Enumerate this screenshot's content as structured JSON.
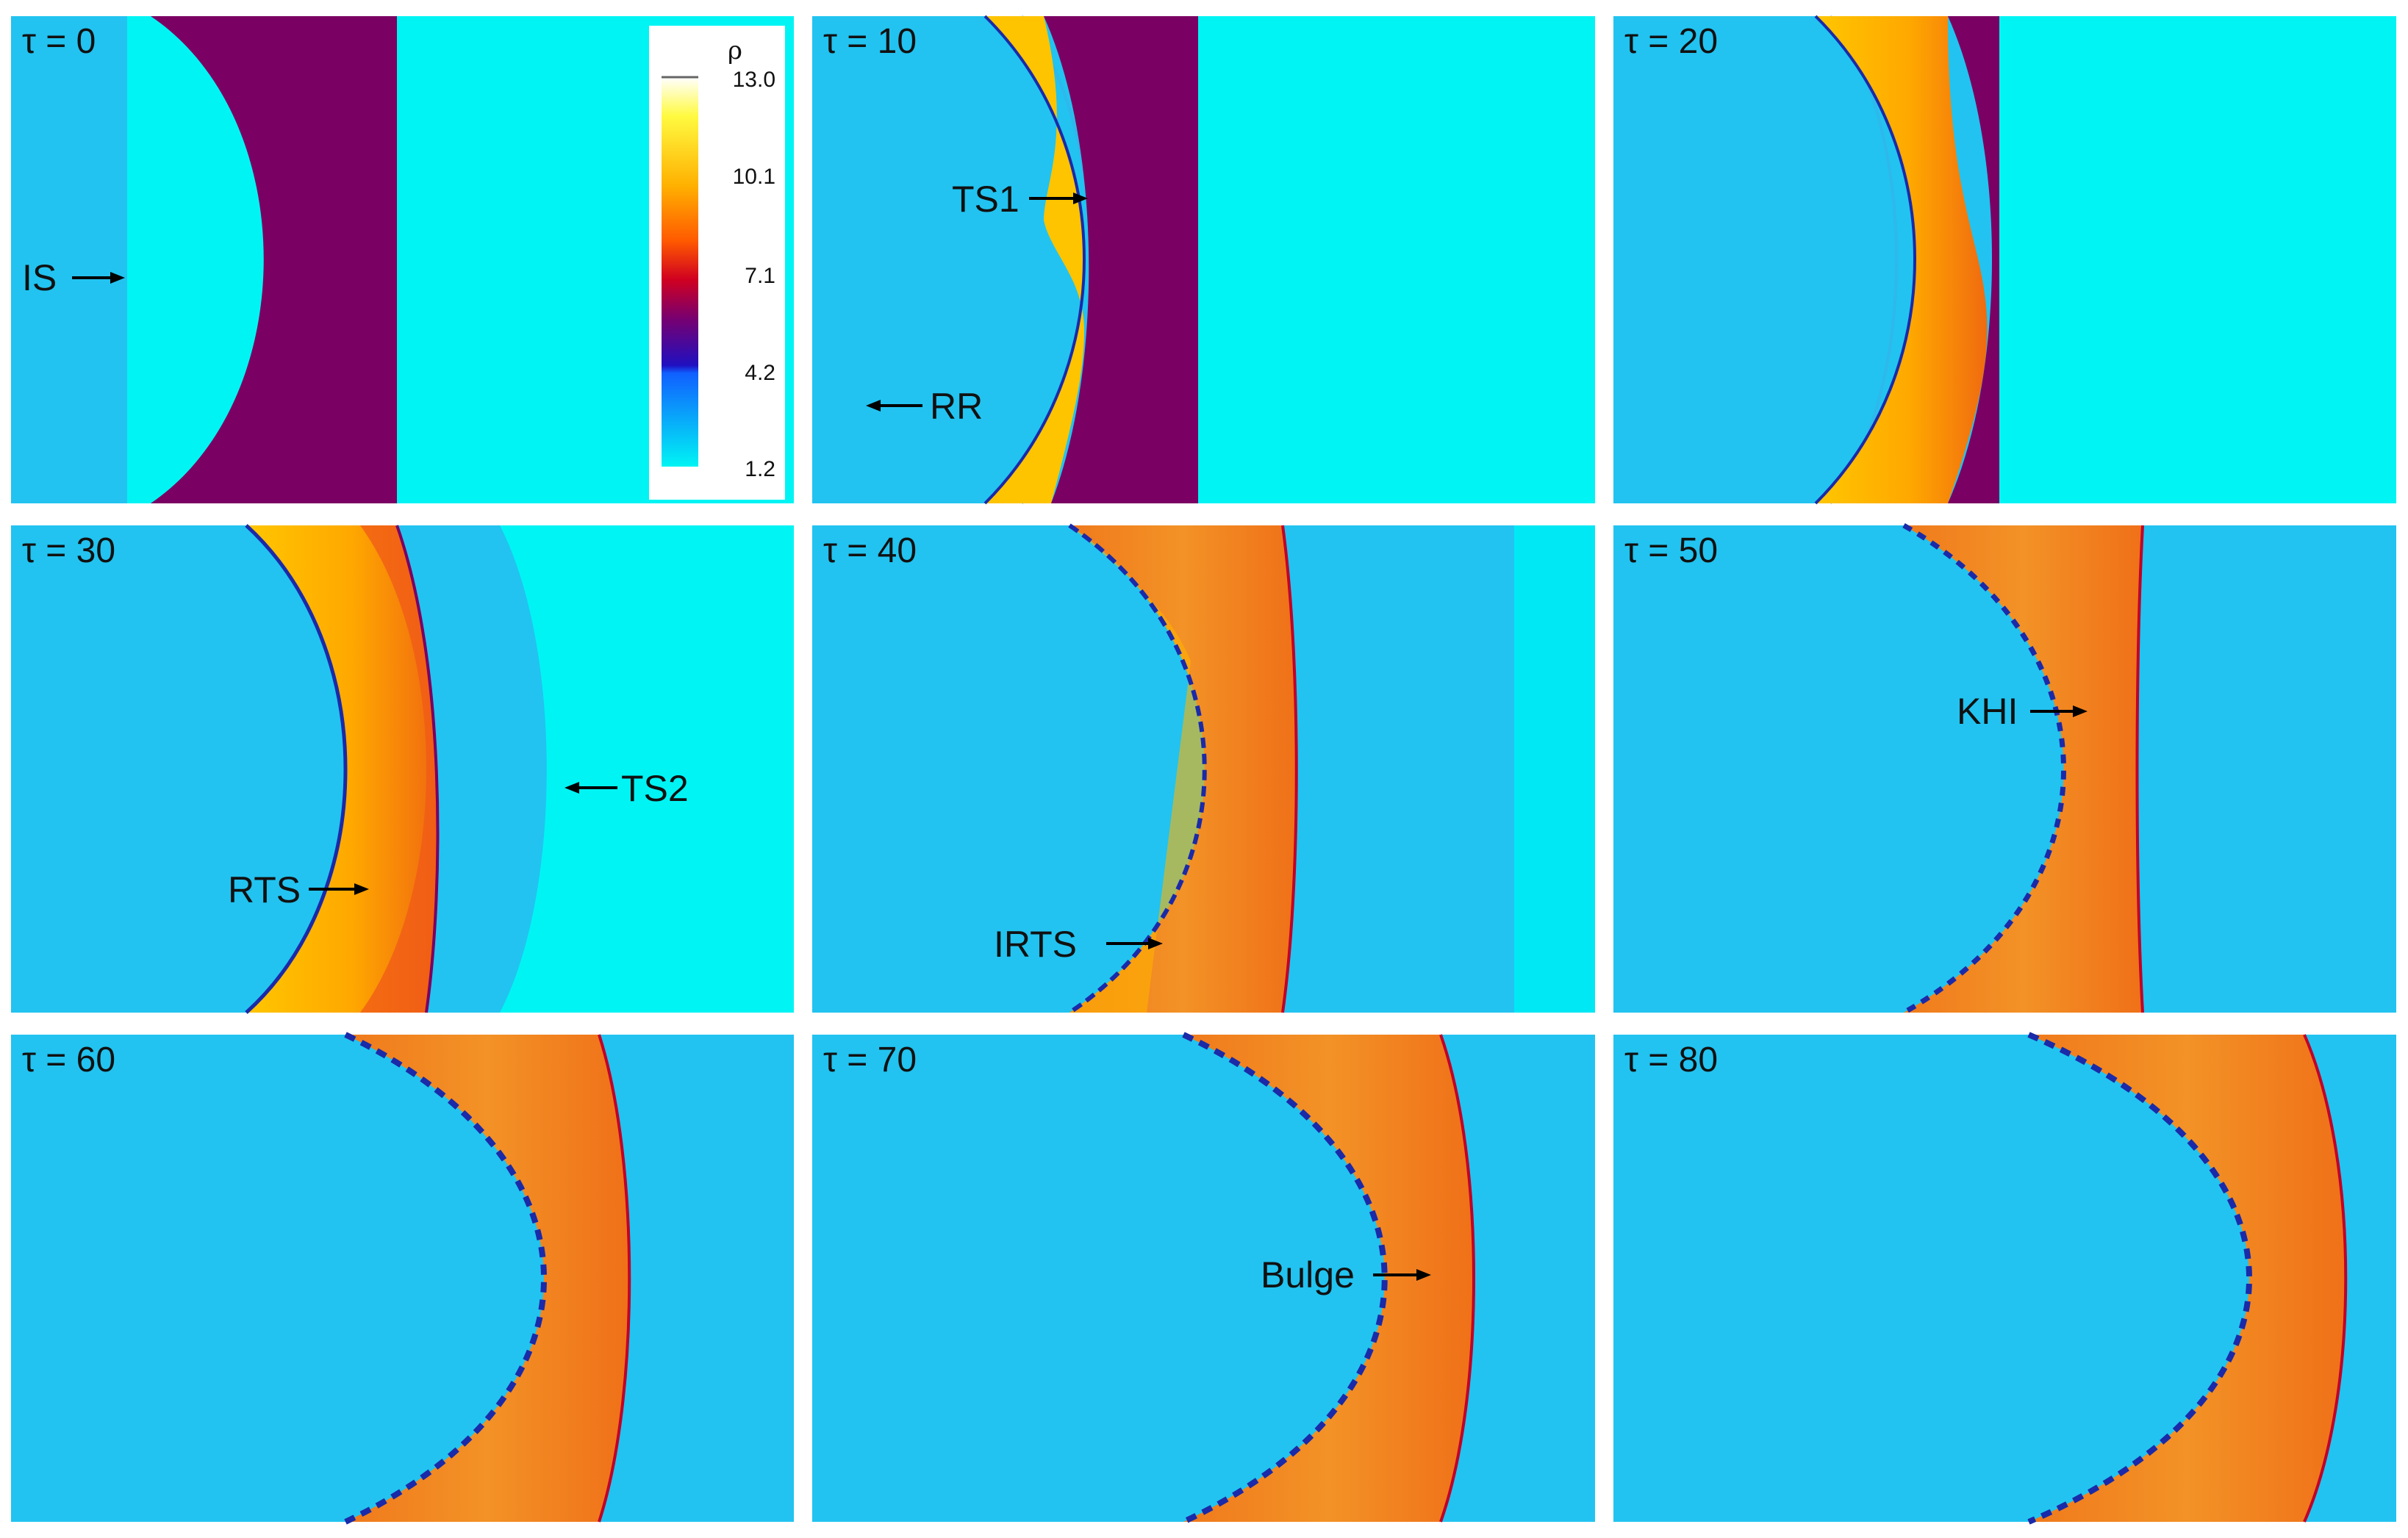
{
  "figure": {
    "panels": [
      {
        "time_label": "τ = 0",
        "stage": 0
      },
      {
        "time_label": "τ = 10",
        "stage": 1
      },
      {
        "time_label": "τ = 20",
        "stage": 2
      },
      {
        "time_label": "τ = 30",
        "stage": 3
      },
      {
        "time_label": "τ = 40",
        "stage": 4
      },
      {
        "time_label": "τ = 50",
        "stage": 5
      },
      {
        "time_label": "τ = 60",
        "stage": 6
      },
      {
        "time_label": "τ = 70",
        "stage": 7
      },
      {
        "time_label": "τ = 80",
        "stage": 8
      }
    ],
    "annotations": {
      "is": "IS",
      "ts1": "TS1",
      "rr": "RR",
      "ts2": "TS2",
      "rts": "RTS",
      "irts": "IRTS",
      "khi": "KHI",
      "bulge": "Bulge"
    },
    "colorbar": {
      "variable": "ρ",
      "ticks": [
        "13.0",
        "10.1",
        "7.1",
        "4.2",
        "1.2"
      ]
    },
    "colors": {
      "ambient_gas": "#00f4f4",
      "shocked_gas": "#22c3f0",
      "heavy_gas": "#7b0063",
      "compressed_gas": "#ffc400",
      "mixed_gas": "#f2801e",
      "interface": "#1a2aa8"
    }
  }
}
